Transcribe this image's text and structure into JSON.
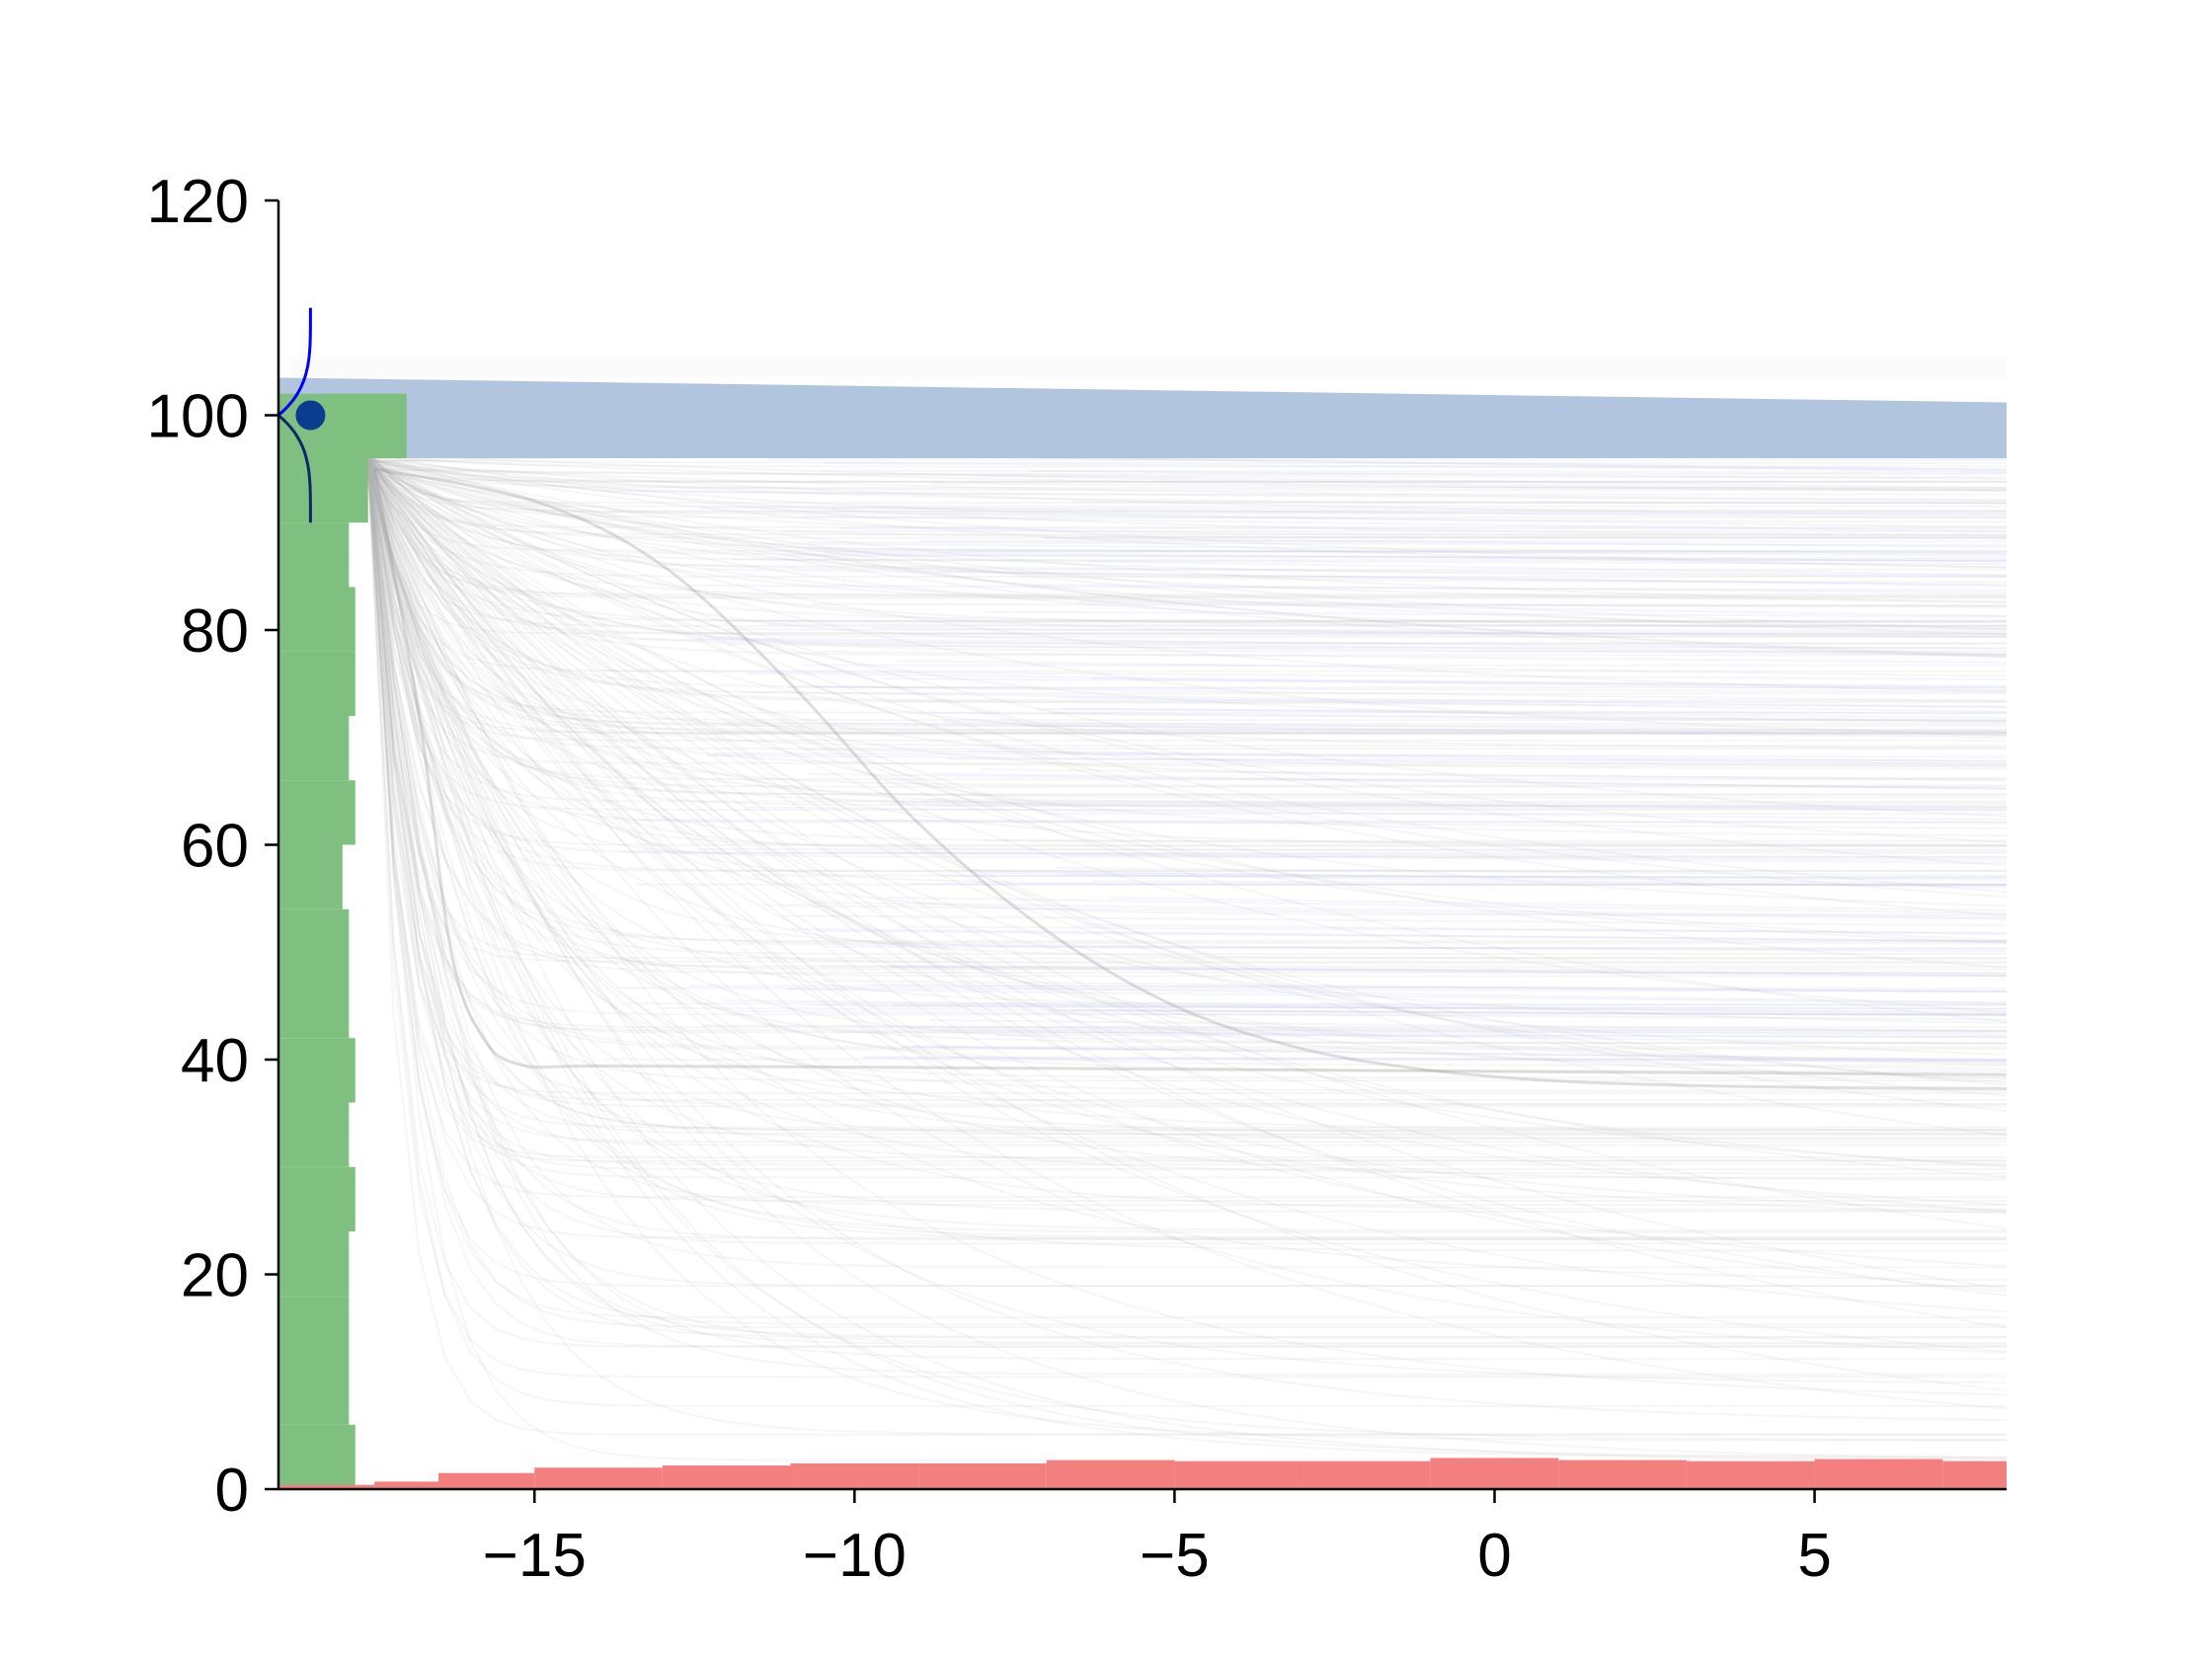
{
  "chart_data": {
    "type": "line",
    "title": "",
    "xlabel": "",
    "ylabel": "",
    "xlim": [
      -19,
      8
    ],
    "ylim": [
      0,
      120
    ],
    "x_ticks": [
      {
        "value": -15,
        "label": "−15"
      },
      {
        "value": -10,
        "label": "−10"
      },
      {
        "value": -5,
        "label": "−5"
      },
      {
        "value": 0,
        "label": "0"
      },
      {
        "value": 5,
        "label": "5"
      }
    ],
    "y_ticks": [
      {
        "value": 0,
        "label": "0"
      },
      {
        "value": 20,
        "label": "20"
      },
      {
        "value": 40,
        "label": "40"
      },
      {
        "value": 60,
        "label": "60"
      },
      {
        "value": 80,
        "label": "80"
      },
      {
        "value": 100,
        "label": "100"
      },
      {
        "value": 120,
        "label": "120"
      }
    ],
    "grid": false,
    "legend": "none",
    "colors": {
      "band": "#b0c4de",
      "trajectories": "#b8b8b8",
      "trajectories_tint": "#b8b8e8",
      "y_histogram": "#7fbf7f",
      "x_histogram": "#f47f7f",
      "marker": "#0a3d8f",
      "kernel_upper": "#0000ff",
      "kernel_lower": "#0a2a6a"
    },
    "band": {
      "x_start": -19,
      "x_end": 8,
      "y_top_start": 103.5,
      "y_top_end": 101.2,
      "y_bottom": 96
    },
    "highlight_curves": [
      {
        "x": [
          -17.5,
          -16.8,
          -16.3,
          -15.8,
          -15.2,
          -14,
          -10,
          -5,
          0,
          5,
          8
        ],
        "y": [
          95,
          72,
          50,
          42,
          39.5,
          39.4,
          39.3,
          39.1,
          38.9,
          38.7,
          38.6
        ]
      },
      {
        "x": [
          -17.5,
          -15,
          -13,
          -11,
          -9,
          -7,
          -5,
          -3,
          -1,
          1,
          3,
          5,
          8
        ],
        "y": [
          95,
          92,
          86,
          75,
          62,
          52,
          45,
          41,
          39,
          38,
          37.6,
          37.4,
          37.3
        ]
      }
    ],
    "marker": {
      "x": -18.5,
      "y": 100
    },
    "kernel": {
      "x": -18.5,
      "y_min": 90,
      "y_max": 110,
      "peak_width": 0.5
    },
    "y_histogram": {
      "bin_edges": [
        0,
        6,
        12,
        18,
        24,
        30,
        36,
        42,
        48,
        54,
        60,
        66,
        72,
        78,
        84,
        90,
        96,
        102
      ],
      "x_right": [
        -17.8,
        -17.9,
        -17.9,
        -17.9,
        -17.8,
        -17.9,
        -17.8,
        -17.9,
        -17.9,
        -18.0,
        -17.8,
        -17.9,
        -17.8,
        -17.8,
        -17.9,
        -17.6,
        -17.0
      ]
    },
    "x_histogram": {
      "bin_edges": [
        -19,
        -17.5,
        -16.5,
        -15,
        -13,
        -11,
        -9,
        -7,
        -5,
        -3,
        -1,
        1,
        3,
        5,
        7,
        8
      ],
      "heights": [
        0.4,
        0.7,
        1.5,
        2.0,
        2.2,
        2.4,
        2.4,
        2.7,
        2.6,
        2.6,
        2.9,
        2.7,
        2.6,
        2.8,
        2.6
      ]
    }
  }
}
